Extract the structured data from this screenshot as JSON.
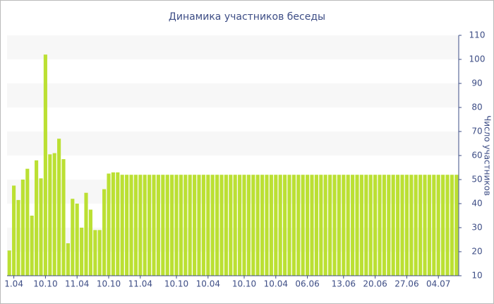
{
  "chart_data": {
    "type": "bar",
    "title": "Динамика участников беседы",
    "y_label": "Число участников",
    "categories": [
      null,
      "1.04",
      null,
      null,
      null,
      null,
      null,
      null,
      "10.10",
      null,
      null,
      null,
      null,
      null,
      null,
      "11.04",
      null,
      null,
      null,
      null,
      null,
      null,
      "10.10",
      null,
      null,
      null,
      null,
      null,
      null,
      "11.04",
      null,
      null,
      null,
      null,
      null,
      null,
      null,
      "10.10",
      null,
      null,
      null,
      null,
      null,
      null,
      "10.04",
      null,
      null,
      null,
      null,
      null,
      null,
      null,
      "10.10",
      null,
      null,
      null,
      null,
      null,
      null,
      "10.04",
      null,
      null,
      null,
      null,
      null,
      null,
      "06.06",
      null,
      null,
      null,
      null,
      null,
      null,
      null,
      "13.06",
      null,
      null,
      null,
      null,
      null,
      null,
      "20.06",
      null,
      null,
      null,
      null,
      null,
      null,
      "27.06",
      null,
      null,
      null,
      null,
      null,
      null,
      "04.07",
      null,
      null,
      null,
      null
    ],
    "values": [
      20.5,
      47.5,
      41.5,
      50,
      54.5,
      35,
      58,
      50.5,
      102,
      60.5,
      61,
      67,
      58.5,
      23.5,
      42,
      40,
      30,
      44.5,
      37.5,
      29,
      29,
      46,
      52.5,
      53,
      53,
      52,
      52,
      52,
      52,
      52,
      52,
      52,
      52,
      52,
      52,
      52,
      52,
      52,
      52,
      52,
      52,
      52,
      52,
      52,
      52,
      52,
      52,
      52,
      52,
      52,
      52,
      52,
      52,
      52,
      52,
      52,
      52,
      52,
      52,
      52,
      52,
      52,
      52,
      52,
      52,
      52,
      52,
      52,
      52,
      52,
      52,
      52,
      52,
      52,
      52,
      52,
      52,
      52,
      52,
      52,
      52,
      52,
      52,
      52,
      52,
      52,
      52,
      52,
      52,
      52,
      52,
      52,
      52,
      52,
      52,
      52,
      52,
      52,
      52,
      52
    ],
    "color": "#bbe033",
    "ylim": [
      10,
      110
    ],
    "yticks": [
      10,
      20,
      30,
      40,
      50,
      60,
      70,
      80,
      90,
      100,
      110
    ],
    "grid": "bands",
    "y_axis_side": "right"
  }
}
